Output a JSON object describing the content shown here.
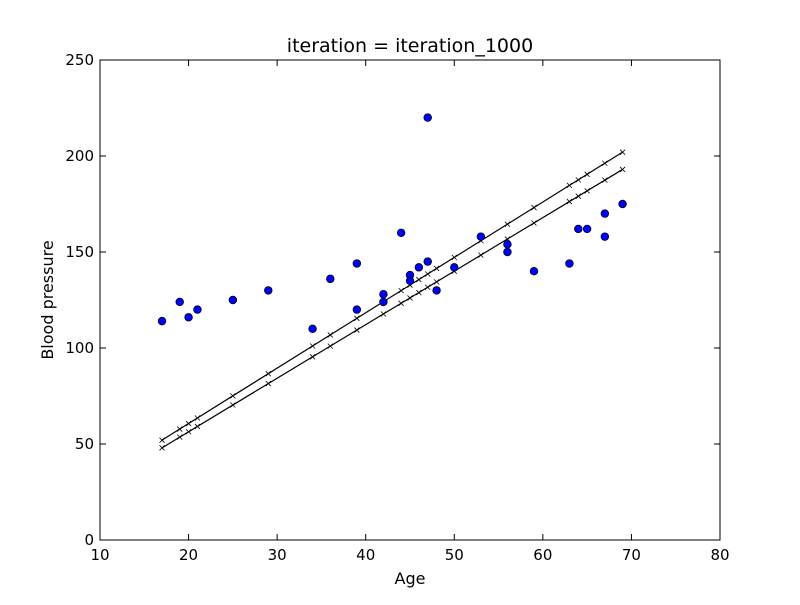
{
  "chart_data": {
    "type": "scatter",
    "title": "iteration = iteration_1000",
    "xlabel": "Age",
    "ylabel": "Blood pressure",
    "xlim": [
      10,
      80
    ],
    "ylim": [
      0,
      250
    ],
    "xticks": [
      10,
      20,
      30,
      40,
      50,
      60,
      70,
      80
    ],
    "yticks": [
      0,
      50,
      100,
      150,
      200,
      250
    ],
    "grid": false,
    "colors": {
      "points_fill": "#0000ff",
      "points_edge": "#000000",
      "lines": "#000000"
    },
    "points": [
      {
        "x": 17,
        "y": 114
      },
      {
        "x": 19,
        "y": 124
      },
      {
        "x": 20,
        "y": 116
      },
      {
        "x": 21,
        "y": 120
      },
      {
        "x": 25,
        "y": 125
      },
      {
        "x": 29,
        "y": 130
      },
      {
        "x": 34,
        "y": 110
      },
      {
        "x": 36,
        "y": 136
      },
      {
        "x": 39,
        "y": 144
      },
      {
        "x": 39,
        "y": 120
      },
      {
        "x": 42,
        "y": 124
      },
      {
        "x": 42,
        "y": 128
      },
      {
        "x": 44,
        "y": 160
      },
      {
        "x": 45,
        "y": 138
      },
      {
        "x": 45,
        "y": 135
      },
      {
        "x": 46,
        "y": 142
      },
      {
        "x": 47,
        "y": 145
      },
      {
        "x": 47,
        "y": 220
      },
      {
        "x": 48,
        "y": 130
      },
      {
        "x": 50,
        "y": 142
      },
      {
        "x": 53,
        "y": 158
      },
      {
        "x": 56,
        "y": 154
      },
      {
        "x": 56,
        "y": 150
      },
      {
        "x": 59,
        "y": 140
      },
      {
        "x": 63,
        "y": 144
      },
      {
        "x": 64,
        "y": 162
      },
      {
        "x": 65,
        "y": 162
      },
      {
        "x": 67,
        "y": 170
      },
      {
        "x": 67,
        "y": 158
      },
      {
        "x": 69,
        "y": 175
      }
    ],
    "lines": [
      {
        "x": [
          17,
          69
        ],
        "y": [
          52,
          202
        ],
        "marker": "x"
      },
      {
        "x": [
          17,
          69
        ],
        "y": [
          48,
          193
        ],
        "marker": "x"
      }
    ]
  }
}
